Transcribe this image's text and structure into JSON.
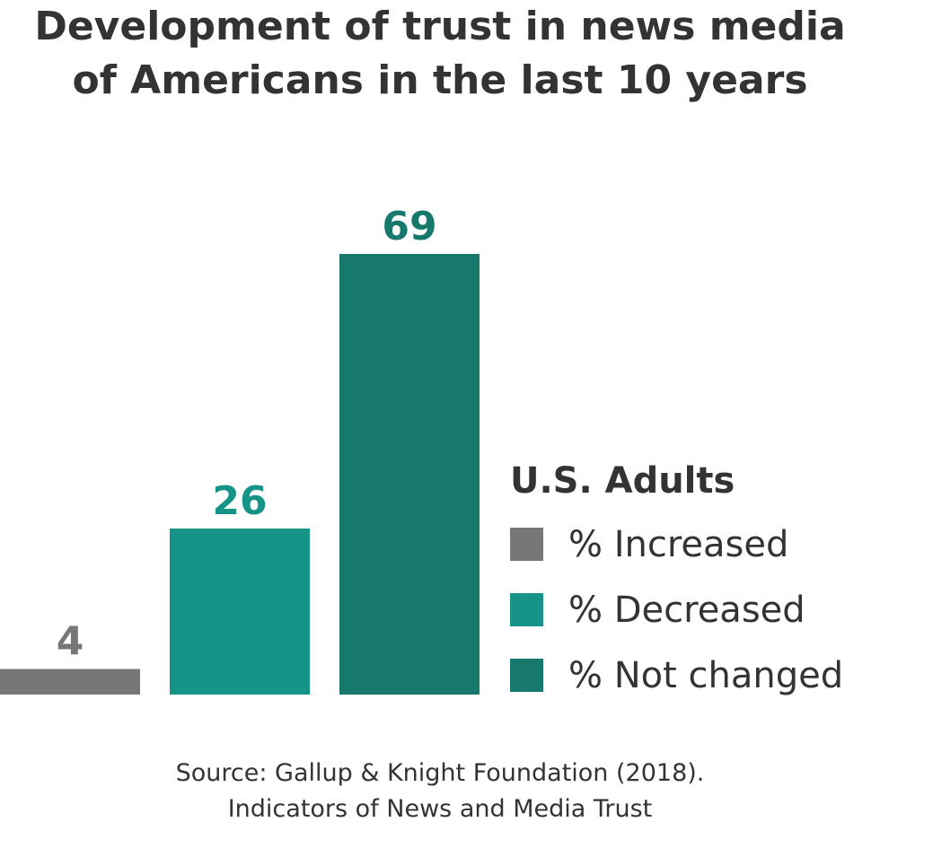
{
  "chart_data": {
    "type": "bar",
    "title": "Development of trust in news media of Americans in the last 10 years",
    "title_lines": [
      "Development of trust in news media",
      "of Americans in the last 10 years"
    ],
    "categories": [
      "% Increased",
      "% Decreased",
      "% Not changed"
    ],
    "values": [
      4,
      26,
      69
    ],
    "value_labels": [
      "4",
      "26",
      "69"
    ],
    "colors": [
      "#777777",
      "#169488",
      "#17796c"
    ],
    "ylim": [
      0,
      69
    ],
    "grid": false,
    "axes_visible": false,
    "legend": {
      "title": "U.S. Adults",
      "placement": "right",
      "items": [
        "% Increased",
        "% Decreased",
        "% Not changed"
      ]
    },
    "source_lines": [
      "Source: Gallup & Knight Foundation (2018).",
      "Indicators of News and Media Trust"
    ]
  }
}
